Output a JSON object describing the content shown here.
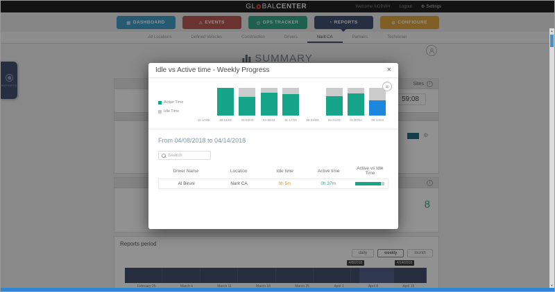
{
  "icons": {
    "gear": "⚙",
    "info": "i",
    "menu": "≡",
    "close": "×",
    "warning": "⚠",
    "grid": "▦",
    "target": "◎",
    "pie": "◔",
    "up": "▲",
    "down": "▼"
  },
  "header": {
    "logo_pre": "GL",
    "logo_mid": "BAL",
    "logo_suffix": "CENTER",
    "welcome": "Welcome AlGBWH",
    "logout": "Logout",
    "settings": "Settings"
  },
  "nav": {
    "buttons": [
      {
        "label": "DASHBOARD",
        "color": "#3d9bc9"
      },
      {
        "label": "EVENTS",
        "color": "#ba544e"
      },
      {
        "label": "GPS TRACKER",
        "color": "#2ea583"
      },
      {
        "label": "REPORTS",
        "color": "#3c4d6e",
        "active": true
      },
      {
        "label": "CONFIGURE",
        "color": "#dfa53d"
      }
    ]
  },
  "subnav": {
    "tabs": [
      {
        "label": "All Locations"
      },
      {
        "label": "Defined Vehicles"
      },
      {
        "label": "Construction"
      },
      {
        "label": "Drivers"
      },
      {
        "label": "Narit CA",
        "active": true
      },
      {
        "label": "Partners"
      },
      {
        "label": "Technician"
      }
    ]
  },
  "page": {
    "title": "SUMMARY",
    "side_tab_label": "REPORTS"
  },
  "panel_sites": {
    "header_label": "Sites",
    "time_value": "59:08"
  },
  "panel_counter": {
    "value": "8"
  },
  "reports_period": {
    "title": "Reports period",
    "buttons": [
      "daily",
      "weekly",
      "month"
    ],
    "active_button": "weekly",
    "tooltip_start": "4/8/2018",
    "tooltip_end": "4/14/2018",
    "axis_labels": [
      "February 25",
      "March 4",
      "March 11",
      "March 18",
      "March 25",
      "April 1",
      "April 8",
      "April 15"
    ]
  },
  "modal": {
    "title": "Idle vs Active time - Weekly Progress",
    "subtitle": "From 04/08/2018 to 04/14/2018",
    "search_placeholder": "Search",
    "legend": [
      {
        "label": "Active Time",
        "color": "#17a589"
      },
      {
        "label": "Idle Time",
        "color": "#cbcbcb"
      }
    ],
    "table": {
      "headers": [
        "Driver Name",
        "Location",
        "Idle time",
        "Active time",
        "Active vs Idle Time"
      ],
      "rows": [
        {
          "driver": "Al Biruni",
          "location": "Narit CA",
          "idle_time": "0h 5m",
          "active_time": "0h 37m",
          "active_pct": 88
        }
      ]
    }
  },
  "chart_data": {
    "type": "bar",
    "stacked": true,
    "unit": "percent",
    "title": "Idle vs Active time - Weekly Progress",
    "categories": [
      "11-17/02",
      "18-24/02",
      "25-03/03",
      "04-10/03",
      "11-17/03",
      "18-24/03",
      "25-31/03",
      "01-07/04",
      "08-14/04"
    ],
    "series": [
      {
        "name": "Active Time",
        "color": "#17a589",
        "values": [
          0,
          100,
          68,
          82,
          77,
          0,
          71,
          79,
          54
        ]
      },
      {
        "name": "Idle Time",
        "color": "#cbcbcb",
        "values": [
          0,
          0,
          32,
          18,
          23,
          0,
          29,
          21,
          46
        ]
      }
    ],
    "highlight_category": "08-14/04",
    "highlight_color": "#1c87dd",
    "ylim": [
      0,
      100
    ],
    "legend_position": "left",
    "grid": false
  },
  "colors": {
    "accent_green": "#17a589",
    "accent_blue": "#1c87dd",
    "idle_gray": "#cbcbcb",
    "idle_text_orange": "#e0913c",
    "nav_active_navy": "#3c4d6e",
    "footer_blue": "#2e86d8"
  }
}
